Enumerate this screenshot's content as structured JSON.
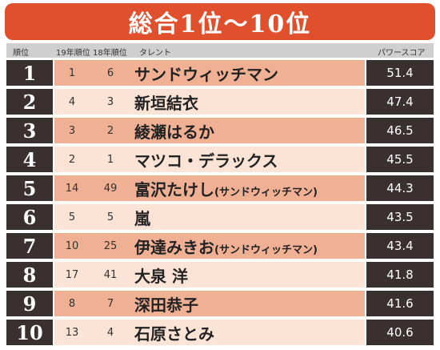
{
  "title": "総合1位～10位",
  "headers": {
    "rank": "順位",
    "rank_19": "19年順位",
    "rank_18": "18年順位",
    "talent": "タレント",
    "power_score": "パワースコア"
  },
  "rows": [
    {
      "rank": "1",
      "prev19": "1",
      "prev18": "6",
      "name": "サンドウィッチマン",
      "sub": "",
      "score": "51.4"
    },
    {
      "rank": "2",
      "prev19": "4",
      "prev18": "3",
      "name": "新垣結衣",
      "sub": "",
      "score": "47.4"
    },
    {
      "rank": "3",
      "prev19": "3",
      "prev18": "2",
      "name": "綾瀬はるか",
      "sub": "",
      "score": "46.5"
    },
    {
      "rank": "4",
      "prev19": "2",
      "prev18": "1",
      "name": "マツコ・デラックス",
      "sub": "",
      "score": "45.5"
    },
    {
      "rank": "5",
      "prev19": "14",
      "prev18": "49",
      "name": "富沢たけし",
      "sub": "(サンドウィッチマン)",
      "score": "44.3"
    },
    {
      "rank": "6",
      "prev19": "5",
      "prev18": "5",
      "name": "嵐",
      "sub": "",
      "score": "43.5"
    },
    {
      "rank": "7",
      "prev19": "10",
      "prev18": "25",
      "name": "伊達みきお",
      "sub": "(サンドウィッチマン)",
      "score": "43.4"
    },
    {
      "rank": "8",
      "prev19": "17",
      "prev18": "41",
      "name": "大泉 洋",
      "sub": "",
      "score": "41.8"
    },
    {
      "rank": "9",
      "prev19": "8",
      "prev18": "7",
      "name": "深田恭子",
      "sub": "",
      "score": "41.6"
    },
    {
      "rank": "10",
      "prev19": "13",
      "prev18": "4",
      "name": "石原さとみ",
      "sub": "",
      "score": "40.6"
    }
  ]
}
